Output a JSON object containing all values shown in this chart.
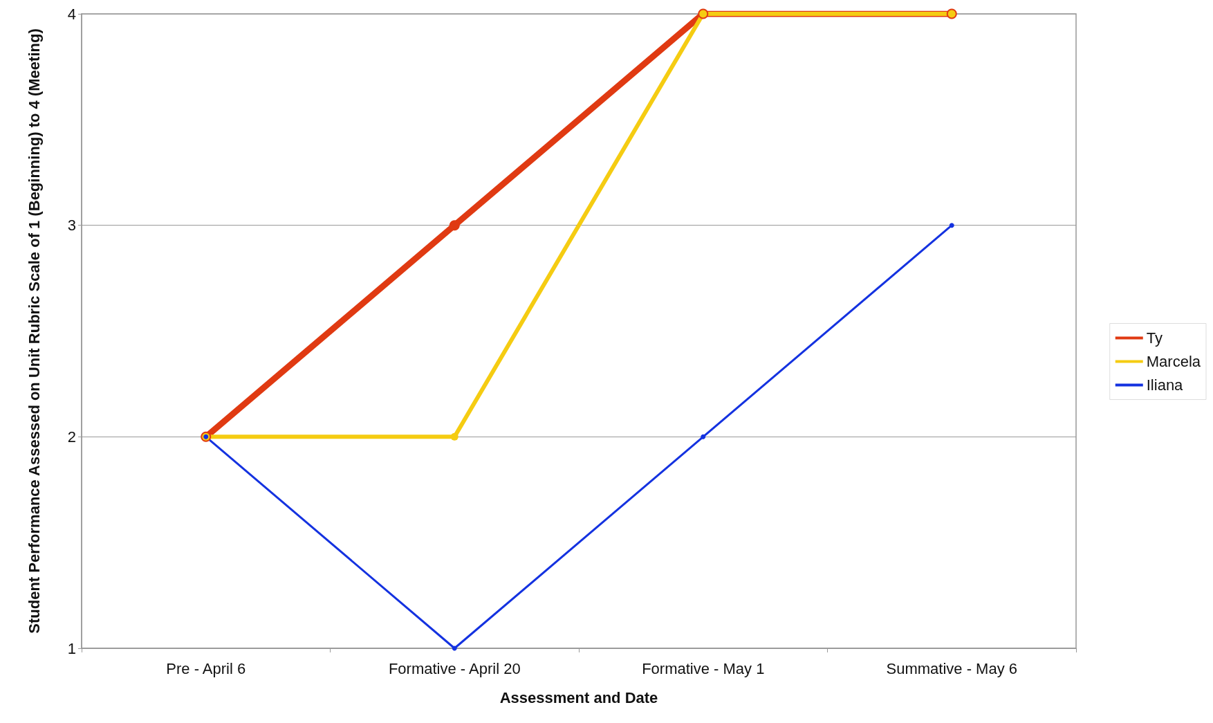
{
  "chart_data": {
    "type": "line",
    "xlabel": "Assessment and Date",
    "ylabel": "Student Performance Assessed on Unit Rubric Scale of 1 (Beginning) to 4 (Meeting)",
    "categories": [
      "Pre - April 6",
      "Formative - April 20",
      "Formative - May 1",
      "Summative - May 6"
    ],
    "series": [
      {
        "name": "Ty",
        "color": "#e03a12",
        "values": [
          2,
          3,
          4,
          4
        ]
      },
      {
        "name": "Marcela",
        "color": "#f5cc12",
        "values": [
          2,
          2,
          4,
          4
        ]
      },
      {
        "name": "Iliana",
        "color": "#1432e0",
        "values": [
          2,
          1,
          2,
          3
        ]
      }
    ],
    "ylim": [
      1,
      4
    ],
    "yticks": [
      1,
      2,
      3,
      4
    ],
    "grid": "y",
    "legend": "right",
    "marker": "circle",
    "line_style": "solid"
  }
}
